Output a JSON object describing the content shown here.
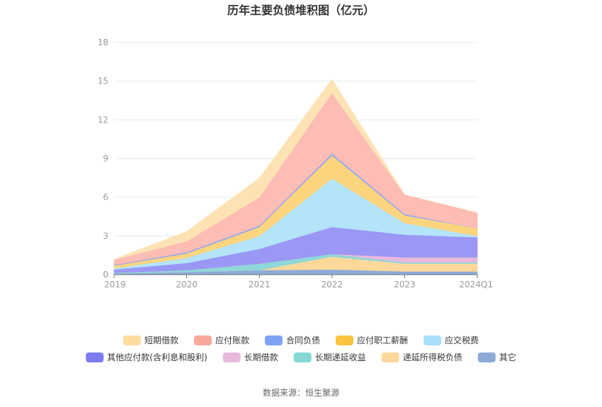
{
  "chart_data": {
    "type": "area",
    "stacked": true,
    "title": "历年主要负债堆积图（亿元）",
    "x": [
      "2019",
      "2020",
      "2021",
      "2022",
      "2023",
      "2024Q1"
    ],
    "ylim": [
      0,
      18
    ],
    "yticks": [
      0,
      3,
      6,
      9,
      12,
      15,
      18
    ],
    "grid": true,
    "legend_position": "bottom",
    "series": [
      {
        "name": "其它",
        "color": "#8eaad8",
        "values": [
          0.1,
          0.2,
          0.35,
          0.4,
          0.25,
          0.25
        ]
      },
      {
        "name": "递延所得税负债",
        "color": "#fcd89a",
        "values": [
          0.0,
          0.0,
          0.0,
          1.0,
          0.6,
          0.6
        ]
      },
      {
        "name": "长期递延收益",
        "color": "#8ed8d8",
        "values": [
          0.05,
          0.15,
          0.5,
          0.2,
          0.1,
          0.1
        ]
      },
      {
        "name": "长期借款",
        "color": "#e8b8dc",
        "values": [
          0.0,
          0.0,
          0.0,
          0.0,
          0.4,
          0.4
        ]
      },
      {
        "name": "其他应付款(含利息和股利)",
        "color": "#9b97f5",
        "values": [
          0.25,
          0.55,
          1.15,
          2.1,
          1.75,
          1.55
        ]
      },
      {
        "name": "应交税费",
        "color": "#b3e4f9",
        "values": [
          0.1,
          0.4,
          1.0,
          3.75,
          0.9,
          0.1
        ]
      },
      {
        "name": "应付职工薪酬",
        "color": "#fdd47e",
        "values": [
          0.2,
          0.35,
          0.7,
          1.8,
          0.6,
          0.6
        ]
      },
      {
        "name": "合同负债",
        "color": "#8fa8f5",
        "values": [
          0.05,
          0.1,
          0.1,
          0.15,
          0.1,
          0.0
        ]
      },
      {
        "name": "应付账款",
        "color": "#fdbcb4",
        "values": [
          0.4,
          0.85,
          2.2,
          4.7,
          1.5,
          1.2
        ]
      },
      {
        "name": "短期借款",
        "color": "#fde3b4",
        "values": [
          0.05,
          0.75,
          1.5,
          1.05,
          0.0,
          0.0
        ]
      }
    ],
    "legend": [
      "短期借款",
      "应付账款",
      "合同负债",
      "应付职工薪酬",
      "应交税费",
      "其他应付款(含利息和股利)",
      "长期借款",
      "长期递延收益",
      "递延所得税负债",
      "其它"
    ],
    "legend_colors": {
      "短期借款": "#fddca0",
      "应付账款": "#f8a99c",
      "合同负债": "#7fa3f3",
      "应付职工薪酬": "#fcc33f",
      "应交税费": "#a9e0fb",
      "其他应付款(含利息和股利)": "#7b7cf0",
      "长期借款": "#e8b8dc",
      "长期递延收益": "#86d8d4",
      "递延所得税负债": "#fdd89c",
      "其它": "#8eaad8"
    }
  },
  "source": "数据来源：恒生聚源"
}
